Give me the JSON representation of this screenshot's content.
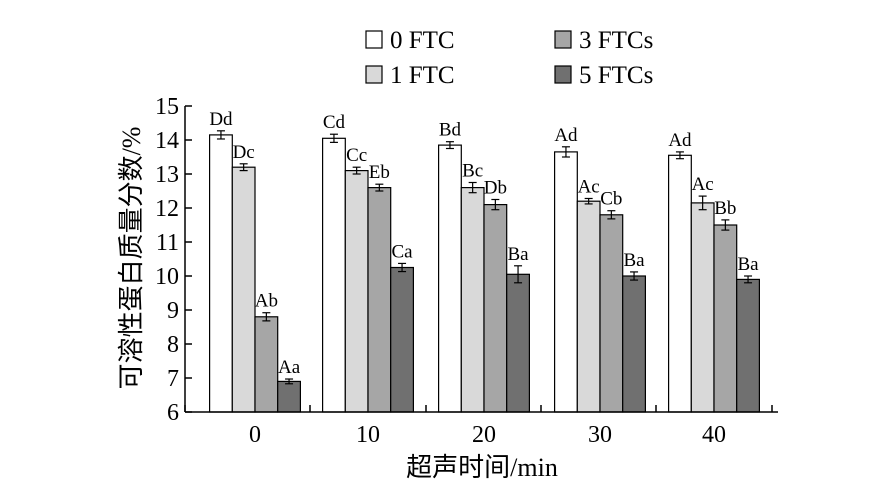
{
  "chart_data": {
    "type": "bar",
    "xlabel": "超声时间/min",
    "ylabel": "可溶性蛋白质量分数/%",
    "ylim": [
      6,
      15
    ],
    "yticks": [
      6,
      7,
      8,
      9,
      10,
      11,
      12,
      13,
      14,
      15
    ],
    "categories": [
      "0",
      "10",
      "20",
      "30",
      "40"
    ],
    "legend_position": "top",
    "grid": false,
    "series": [
      {
        "name": "0 FTC",
        "color": "#ffffff",
        "values": [
          14.15,
          14.05,
          13.85,
          13.65,
          13.55
        ],
        "errors": [
          0.12,
          0.12,
          0.1,
          0.15,
          0.1
        ],
        "labels": [
          "Dd",
          "Cd",
          "Bd",
          "Ad",
          "Ad"
        ]
      },
      {
        "name": "1 FTC",
        "color": "#d9d9d9",
        "values": [
          13.2,
          13.1,
          12.6,
          12.2,
          12.15
        ],
        "errors": [
          0.1,
          0.1,
          0.15,
          0.08,
          0.2
        ],
        "labels": [
          "Dc",
          "Cc",
          "Bc",
          "Ac",
          "Ac"
        ]
      },
      {
        "name": "3 FTCs",
        "color": "#a6a6a6",
        "values": [
          8.8,
          12.6,
          12.1,
          11.8,
          11.5
        ],
        "errors": [
          0.12,
          0.1,
          0.15,
          0.12,
          0.15
        ],
        "labels": [
          "Ab",
          "Eb",
          "Db",
          "Cb",
          "Bb"
        ]
      },
      {
        "name": "5 FTCs",
        "color": "#707070",
        "values": [
          6.9,
          10.25,
          10.05,
          10.0,
          9.9
        ],
        "errors": [
          0.07,
          0.12,
          0.25,
          0.12,
          0.1
        ],
        "labels": [
          "Aa",
          "Ca",
          "Ba",
          "Ba",
          "Ba"
        ]
      }
    ]
  }
}
